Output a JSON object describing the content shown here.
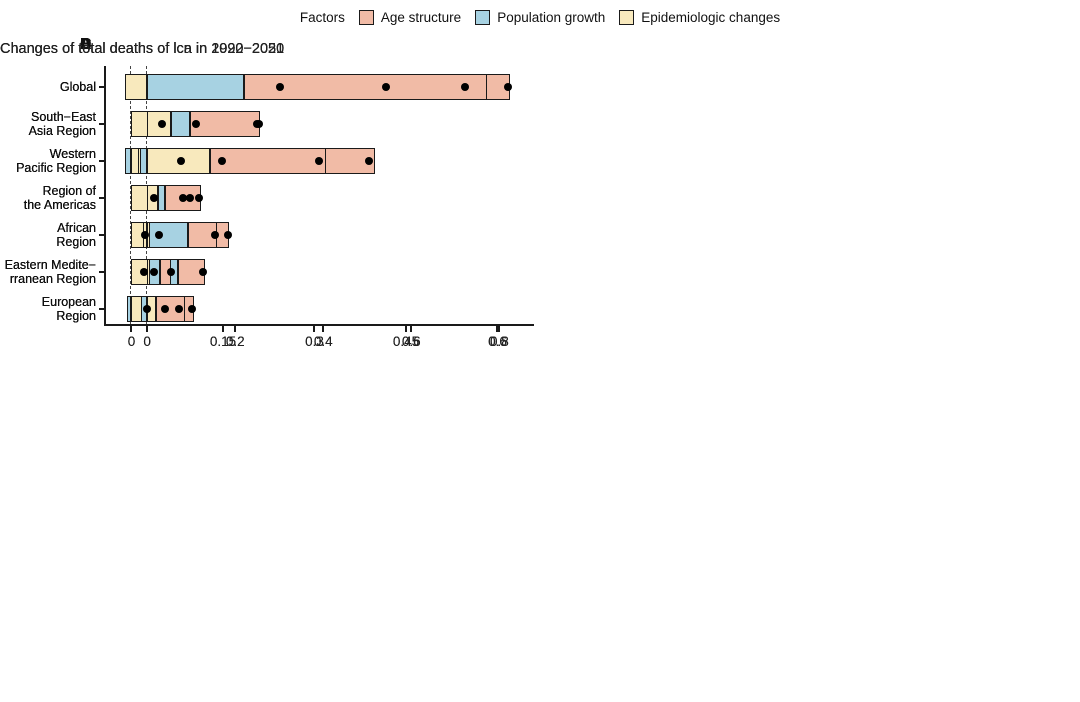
{
  "legend": {
    "title": "Factors",
    "items": [
      {
        "key": "age_structure",
        "label": "Age structure",
        "color": "#F1BBA6"
      },
      {
        "key": "population_growth",
        "label": "Population growth",
        "color": "#A7D2E2"
      },
      {
        "key": "epidemiologic_changes",
        "label": "Epidemiologic changes",
        "color": "#F8E9BD"
      }
    ],
    "outline_color": "#1a1a1a"
  },
  "categories": [
    {
      "name": "Global",
      "lines": [
        "Global"
      ]
    },
    {
      "name": "South−East Asia Region",
      "lines": [
        "South−East",
        "Asia Region"
      ]
    },
    {
      "name": "Western Pacific Region",
      "lines": [
        "Western",
        "Pacific Region"
      ]
    },
    {
      "name": "Region of the Americas",
      "lines": [
        "Region of",
        "the Americas"
      ]
    },
    {
      "name": "African Region",
      "lines": [
        "African",
        "Region"
      ]
    },
    {
      "name": "Eastern Mediterranean Region",
      "lines": [
        "Eastern Medite−",
        "rranean Region"
      ]
    },
    {
      "name": "European Region",
      "lines": [
        "European",
        "Region"
      ]
    }
  ],
  "chart_data": [
    {
      "panel_label": "A",
      "type": "bar",
      "orientation": "horizontal",
      "title": "Changes of total deaths of lcn in 1990−2021",
      "stack_order": [
        "epidemiologic_changes",
        "population_growth",
        "age_structure"
      ],
      "x_ticks": [
        0,
        0.15,
        0.3,
        0.45,
        0.6
      ],
      "x_tick_labels": [
        "0",
        "0.15",
        "0.3",
        "0.45",
        "0.6"
      ],
      "xlim": [
        -0.045,
        0.65
      ],
      "dot_meaning": "net total change",
      "rows": [
        {
          "region": "Global",
          "epidemiologic_changes": 0.054,
          "population_growth": 0.095,
          "age_structure": 0.094,
          "net": 0.243
        },
        {
          "region": "South−East Asia Region",
          "epidemiologic_changes": 0.011,
          "population_growth": 0.019,
          "age_structure": 0.023,
          "net": 0.05
        },
        {
          "region": "Western Pacific Region",
          "epidemiologic_changes": -0.007,
          "population_growth": 0.019,
          "age_structure": 0.071,
          "net": 0.082
        },
        {
          "region": "Region of the Americas",
          "epidemiologic_changes": 0.019,
          "population_growth": 0.007,
          "age_structure": 0.014,
          "net": 0.037
        },
        {
          "region": "African Region",
          "epidemiologic_changes": 0.002,
          "population_growth": 0.02,
          "age_structure": 0.003,
          "net": 0.023
        },
        {
          "region": "Eastern Mediterranean Region",
          "epidemiologic_changes": 0.004,
          "population_growth": 0.013,
          "age_structure": 0.004,
          "net": 0.02
        },
        {
          "region": "European Region",
          "epidemiologic_changes": 0.014,
          "population_growth": 0.003,
          "age_structure": 0.012,
          "net": 0.026
        }
      ]
    },
    {
      "panel_label": "B",
      "type": "bar",
      "orientation": "horizontal",
      "title": "Changes of total deaths of lcn in 2022−2050",
      "stack_order": [
        "epidemiologic_changes",
        "population_growth",
        "age_structure"
      ],
      "x_ticks": [
        0,
        0.15,
        0.3,
        0.45,
        0.6
      ],
      "x_tick_labels": [
        "0",
        "0.15",
        "0.3",
        "0.45",
        "0.6"
      ],
      "xlim": [
        -0.045,
        0.65
      ],
      "dot_meaning": "net total change",
      "rows": [
        {
          "region": "Global",
          "epidemiologic_changes": 0.174,
          "population_growth": 0.116,
          "age_structure": 0.33,
          "net": 0.618
        },
        {
          "region": "South−East Asia Region",
          "epidemiologic_changes": 0.08,
          "population_growth": 0.022,
          "age_structure": 0.104,
          "net": 0.205
        },
        {
          "region": "Western Pacific Region",
          "epidemiologic_changes": 0.188,
          "population_growth": -0.01,
          "age_structure": 0.212,
          "net": 0.39
        },
        {
          "region": "Region of the Americas",
          "epidemiologic_changes": 0.031,
          "population_growth": 0.011,
          "age_structure": 0.044,
          "net": 0.085
        },
        {
          "region": "African Region",
          "epidemiologic_changes": 0.046,
          "population_growth": 0.064,
          "age_structure": 0.05,
          "net": 0.159
        },
        {
          "region": "Eastern Mediterranean Region",
          "epidemiologic_changes": 0.044,
          "population_growth": 0.032,
          "age_structure": 0.044,
          "net": 0.118
        },
        {
          "region": "European Region",
          "epidemiologic_changes": 0.035,
          "population_growth": -0.008,
          "age_structure": 0.028,
          "net": 0.055
        }
      ]
    },
    {
      "panel_label": "C",
      "type": "bar",
      "orientation": "horizontal",
      "title": "Changes of total deaths of lca in 1990−2021",
      "stack_order": [
        "epidemiologic_changes",
        "population_growth",
        "age_structure"
      ],
      "x_ticks": [
        0,
        0.2,
        0.4,
        0.6,
        0.8
      ],
      "x_tick_labels": [
        "0",
        "0.2",
        "0.4",
        "0.6",
        "0.8"
      ],
      "xlim": [
        -0.098,
        0.865
      ],
      "dot_meaning": "net total change",
      "rows": [
        {
          "region": "Global",
          "epidemiologic_changes": 0.057,
          "population_growth": 0.242,
          "age_structure": 0.245,
          "net": 0.542
        },
        {
          "region": "South−East Asia Region",
          "epidemiologic_changes": 0.018,
          "population_growth": 0.045,
          "age_structure": 0.049,
          "net": 0.11
        },
        {
          "region": "Western Pacific Region",
          "epidemiologic_changes": -0.02,
          "population_growth": 0.049,
          "age_structure": 0.142,
          "net": 0.171
        },
        {
          "region": "Region of the Americas",
          "epidemiologic_changes": 0.042,
          "population_growth": 0.023,
          "age_structure": 0.036,
          "net": 0.098
        },
        {
          "region": "African Region",
          "epidemiologic_changes": -0.01,
          "population_growth": 0.038,
          "age_structure": 0.002,
          "net": 0.028
        },
        {
          "region": "Eastern Mediterranean Region",
          "epidemiologic_changes": 0.004,
          "population_growth": 0.009,
          "age_structure": 0.006,
          "net": 0.015
        },
        {
          "region": "European Region",
          "epidemiologic_changes": 0.038,
          "population_growth": 0.01,
          "age_structure": 0.058,
          "net": 0.102
        }
      ]
    },
    {
      "panel_label": "D",
      "type": "bar",
      "orientation": "horizontal",
      "title": "Changes of total deaths of lca in 2022−2050",
      "stack_order": [
        "epidemiologic_changes",
        "population_growth",
        "age_structure"
      ],
      "x_ticks": [
        0,
        0.2,
        0.4,
        0.6,
        0.8
      ],
      "x_tick_labels": [
        "0",
        "0.2",
        "0.4",
        "0.6",
        "0.8"
      ],
      "xlim": [
        -0.098,
        0.865
      ],
      "dot_meaning": "net total change",
      "rows": [
        {
          "region": "Global",
          "epidemiologic_changes": -0.05,
          "population_growth": 0.221,
          "age_structure": 0.551,
          "net": 0.721
        },
        {
          "region": "South−East Asia Region",
          "epidemiologic_changes": 0.055,
          "population_growth": 0.043,
          "age_structure": 0.159,
          "net": 0.255
        },
        {
          "region": "Western Pacific Region",
          "epidemiologic_changes": 0.143,
          "population_growth": -0.017,
          "age_structure": 0.264,
          "net": 0.39
        },
        {
          "region": "Region of the Americas",
          "epidemiologic_changes": 0.025,
          "population_growth": 0.015,
          "age_structure": 0.083,
          "net": 0.118
        },
        {
          "region": "African Region",
          "epidemiologic_changes": 0.004,
          "population_growth": 0.088,
          "age_structure": 0.066,
          "net": 0.155
        },
        {
          "region": "Eastern Mediterranean Region",
          "epidemiologic_changes": 0.005,
          "population_growth": 0.025,
          "age_structure": 0.025,
          "net": 0.055
        },
        {
          "region": "European Region",
          "epidemiologic_changes": 0.019,
          "population_growth": -0.015,
          "age_structure": 0.068,
          "net": 0.073
        }
      ]
    }
  ]
}
